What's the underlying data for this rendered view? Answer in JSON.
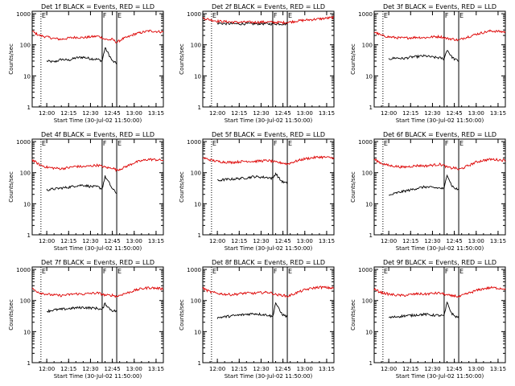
{
  "figure": {
    "x_title": "Start Time (30-Jul-02 11:50:00)",
    "y_title": "Counts/sec",
    "x_ticks": [
      "12:00",
      "12:15",
      "12:30",
      "12:45",
      "13:00",
      "13:15"
    ],
    "y_ticks": [
      "1",
      "10",
      "100",
      "1000"
    ],
    "marker_labels": [
      "E",
      "F",
      "E"
    ],
    "colors": {
      "events": "#000000",
      "lld": "#dd0000",
      "axes": "#000000"
    }
  },
  "chart_data": [
    {
      "type": "line",
      "title": "Det 1f BLACK = Events, RED = LLD",
      "xlabel": "Start Time (30-Jul-02 11:50:00)",
      "ylabel": "Counts/sec",
      "x_unit": "minutes after 11:50",
      "xlim": [
        0,
        90
      ],
      "ylim": [
        1,
        1200
      ],
      "yscale": "log",
      "marker_lines": [
        6,
        48,
        58
      ],
      "series": [
        {
          "name": "Events",
          "color": "#000000",
          "x": [
            10,
            15,
            20,
            25,
            30,
            35,
            40,
            45,
            48,
            50,
            53,
            55,
            58
          ],
          "y": [
            30,
            28,
            34,
            32,
            38,
            40,
            36,
            34,
            30,
            80,
            45,
            30,
            25
          ]
        },
        {
          "name": "LLD",
          "color": "#dd0000",
          "x": [
            0,
            5,
            10,
            15,
            20,
            25,
            30,
            35,
            40,
            45,
            48,
            50,
            53,
            55,
            58,
            62,
            66,
            70,
            75,
            80,
            85,
            90
          ],
          "y": [
            270,
            200,
            180,
            160,
            150,
            165,
            175,
            170,
            180,
            190,
            170,
            150,
            145,
            150,
            120,
            155,
            180,
            220,
            250,
            280,
            270,
            260
          ]
        }
      ]
    },
    {
      "type": "line",
      "title": "Det 2f BLACK = Events, RED = LLD",
      "xlabel": "Start Time (30-Jul-02 11:50:00)",
      "ylabel": "Counts/sec",
      "x_unit": "minutes after 11:50",
      "xlim": [
        0,
        90
      ],
      "ylim": [
        1,
        1200
      ],
      "yscale": "log",
      "marker_lines": [
        6,
        48,
        58
      ],
      "series": [
        {
          "name": "Events",
          "color": "#000000",
          "x": [
            10,
            15,
            20,
            25,
            30,
            35,
            40,
            45,
            50,
            55,
            58
          ],
          "y": [
            500,
            480,
            480,
            470,
            480,
            470,
            480,
            470,
            475,
            470,
            470
          ]
        },
        {
          "name": "LLD",
          "color": "#dd0000",
          "x": [
            0,
            5,
            10,
            15,
            20,
            25,
            30,
            35,
            40,
            45,
            50,
            55,
            60,
            65,
            70,
            75,
            80,
            85,
            90
          ],
          "y": [
            720,
            640,
            580,
            560,
            540,
            530,
            540,
            530,
            540,
            540,
            530,
            520,
            540,
            590,
            620,
            650,
            680,
            720,
            760
          ]
        }
      ]
    },
    {
      "type": "line",
      "title": "Det 3f BLACK = Events, RED = LLD",
      "xlabel": "Start Time (30-Jul-02 11:50:00)",
      "ylabel": "Counts/sec",
      "x_unit": "minutes after 11:50",
      "xlim": [
        0,
        90
      ],
      "ylim": [
        1,
        1200
      ],
      "yscale": "log",
      "marker_lines": [
        6,
        48,
        58
      ],
      "series": [
        {
          "name": "Events",
          "color": "#000000",
          "x": [
            10,
            15,
            20,
            25,
            30,
            35,
            40,
            45,
            48,
            50,
            53,
            55,
            58
          ],
          "y": [
            35,
            38,
            36,
            40,
            42,
            44,
            40,
            38,
            35,
            70,
            42,
            35,
            30
          ]
        },
        {
          "name": "LLD",
          "color": "#dd0000",
          "x": [
            0,
            5,
            10,
            15,
            20,
            25,
            30,
            35,
            40,
            45,
            48,
            50,
            53,
            55,
            58,
            62,
            66,
            70,
            75,
            80,
            85,
            90
          ],
          "y": [
            260,
            200,
            180,
            170,
            165,
            170,
            175,
            170,
            180,
            185,
            170,
            160,
            155,
            150,
            140,
            170,
            190,
            220,
            250,
            280,
            270,
            260
          ]
        }
      ]
    },
    {
      "type": "line",
      "title": "Det 4f BLACK = Events, RED = LLD",
      "xlabel": "Start Time (30-Jul-02 11:50:00)",
      "ylabel": "Counts/sec",
      "x_unit": "minutes after 11:50",
      "xlim": [
        0,
        90
      ],
      "ylim": [
        1,
        1200
      ],
      "yscale": "log",
      "marker_lines": [
        6,
        48,
        58
      ],
      "series": [
        {
          "name": "Events",
          "color": "#000000",
          "x": [
            10,
            15,
            20,
            25,
            30,
            35,
            40,
            45,
            48,
            50,
            53,
            55,
            58
          ],
          "y": [
            28,
            30,
            32,
            34,
            38,
            40,
            36,
            35,
            30,
            75,
            45,
            30,
            22
          ]
        },
        {
          "name": "LLD",
          "color": "#dd0000",
          "x": [
            0,
            5,
            10,
            15,
            20,
            25,
            30,
            35,
            40,
            45,
            48,
            50,
            53,
            55,
            58,
            62,
            66,
            70,
            75,
            80,
            85,
            90
          ],
          "y": [
            260,
            180,
            150,
            140,
            135,
            145,
            160,
            155,
            165,
            175,
            160,
            150,
            140,
            145,
            120,
            140,
            170,
            210,
            240,
            270,
            260,
            250
          ]
        }
      ]
    },
    {
      "type": "line",
      "title": "Det 5f BLACK = Events, RED = LLD",
      "xlabel": "Start Time (30-Jul-02 11:50:00)",
      "ylabel": "Counts/sec",
      "x_unit": "minutes after 11:50",
      "xlim": [
        0,
        90
      ],
      "ylim": [
        1,
        1200
      ],
      "yscale": "log",
      "marker_lines": [
        6,
        48,
        58
      ],
      "series": [
        {
          "name": "Events",
          "color": "#000000",
          "x": [
            10,
            15,
            20,
            25,
            30,
            35,
            40,
            45,
            48,
            50,
            53,
            55,
            58
          ],
          "y": [
            55,
            60,
            62,
            65,
            68,
            75,
            72,
            70,
            65,
            95,
            60,
            50,
            45
          ]
        },
        {
          "name": "LLD",
          "color": "#dd0000",
          "x": [
            0,
            5,
            10,
            15,
            20,
            25,
            30,
            35,
            40,
            45,
            48,
            50,
            53,
            55,
            58,
            62,
            66,
            70,
            75,
            80,
            85,
            90
          ],
          "y": [
            300,
            260,
            230,
            220,
            215,
            225,
            235,
            230,
            240,
            245,
            230,
            215,
            210,
            205,
            190,
            220,
            250,
            280,
            300,
            320,
            310,
            300
          ]
        }
      ]
    },
    {
      "type": "line",
      "title": "Det 6f BLACK = Events, RED = LLD",
      "xlabel": "Start Time (30-Jul-02 11:50:00)",
      "ylabel": "Counts/sec",
      "x_unit": "minutes after 11:50",
      "xlim": [
        0,
        90
      ],
      "ylim": [
        1,
        1200
      ],
      "yscale": "log",
      "marker_lines": [
        6,
        48,
        58
      ],
      "series": [
        {
          "name": "Events",
          "color": "#000000",
          "x": [
            10,
            15,
            20,
            25,
            30,
            35,
            40,
            45,
            48,
            50,
            53,
            55,
            58
          ],
          "y": [
            18,
            22,
            25,
            28,
            32,
            35,
            33,
            32,
            30,
            90,
            40,
            32,
            28
          ]
        },
        {
          "name": "LLD",
          "color": "#dd0000",
          "x": [
            0,
            5,
            10,
            15,
            20,
            25,
            30,
            35,
            40,
            45,
            48,
            50,
            53,
            55,
            58,
            62,
            66,
            70,
            75,
            80,
            85,
            90
          ],
          "y": [
            270,
            200,
            170,
            160,
            150,
            160,
            170,
            165,
            175,
            185,
            170,
            150,
            140,
            145,
            125,
            150,
            180,
            220,
            250,
            270,
            260,
            250
          ]
        }
      ]
    },
    {
      "type": "line",
      "title": "Det 7f BLACK = Events, RED = LLD",
      "xlabel": "Start Time (30-Jul-02 11:50:00)",
      "ylabel": "Counts/sec",
      "x_unit": "minutes after 11:50",
      "xlim": [
        0,
        90
      ],
      "ylim": [
        1,
        1200
      ],
      "yscale": "log",
      "marker_lines": [
        6,
        48,
        58
      ],
      "series": [
        {
          "name": "Events",
          "color": "#000000",
          "x": [
            10,
            15,
            20,
            25,
            30,
            35,
            40,
            45,
            48,
            50,
            53,
            55,
            58
          ],
          "y": [
            45,
            50,
            52,
            55,
            58,
            60,
            58,
            56,
            50,
            80,
            55,
            48,
            45
          ]
        },
        {
          "name": "LLD",
          "color": "#dd0000",
          "x": [
            0,
            5,
            10,
            15,
            20,
            25,
            30,
            35,
            40,
            45,
            48,
            50,
            53,
            55,
            58,
            62,
            66,
            70,
            75,
            80,
            85,
            90
          ],
          "y": [
            240,
            180,
            160,
            150,
            145,
            155,
            165,
            160,
            170,
            175,
            160,
            150,
            145,
            150,
            135,
            160,
            180,
            210,
            240,
            260,
            250,
            240
          ]
        }
      ]
    },
    {
      "type": "line",
      "title": "Det 8f BLACK = Events, RED = LLD",
      "xlabel": "Start Time (30-Jul-02 11:50:00)",
      "ylabel": "Counts/sec",
      "x_unit": "minutes after 11:50",
      "xlim": [
        0,
        90
      ],
      "ylim": [
        1,
        1200
      ],
      "yscale": "log",
      "marker_lines": [
        6,
        48,
        58
      ],
      "series": [
        {
          "name": "Events",
          "color": "#000000",
          "x": [
            10,
            15,
            20,
            25,
            30,
            35,
            40,
            45,
            48,
            50,
            53,
            55,
            58
          ],
          "y": [
            28,
            30,
            32,
            34,
            36,
            38,
            36,
            34,
            30,
            85,
            45,
            35,
            30
          ]
        },
        {
          "name": "LLD",
          "color": "#dd0000",
          "x": [
            0,
            5,
            10,
            15,
            20,
            25,
            30,
            35,
            40,
            45,
            48,
            50,
            53,
            55,
            58,
            62,
            66,
            70,
            75,
            80,
            85,
            90
          ],
          "y": [
            250,
            190,
            170,
            160,
            155,
            165,
            175,
            170,
            180,
            185,
            170,
            155,
            150,
            150,
            135,
            160,
            190,
            220,
            250,
            270,
            260,
            250
          ]
        }
      ]
    },
    {
      "type": "line",
      "title": "Det 9f BLACK = Events, RED = LLD",
      "xlabel": "Start Time (30-Jul-02 11:50:00)",
      "ylabel": "Counts/sec",
      "x_unit": "minutes after 11:50",
      "xlim": [
        0,
        90
      ],
      "ylim": [
        1,
        1200
      ],
      "yscale": "log",
      "marker_lines": [
        6,
        48,
        58
      ],
      "series": [
        {
          "name": "Events",
          "color": "#000000",
          "x": [
            10,
            15,
            20,
            25,
            30,
            35,
            40,
            45,
            48,
            50,
            53,
            55,
            58
          ],
          "y": [
            28,
            30,
            32,
            33,
            35,
            36,
            34,
            33,
            32,
            85,
            40,
            32,
            28
          ]
        },
        {
          "name": "LLD",
          "color": "#dd0000",
          "x": [
            0,
            5,
            10,
            15,
            20,
            25,
            30,
            35,
            40,
            45,
            48,
            50,
            53,
            55,
            58,
            62,
            66,
            70,
            75,
            80,
            85,
            90
          ],
          "y": [
            230,
            180,
            160,
            150,
            145,
            155,
            165,
            160,
            170,
            175,
            160,
            150,
            140,
            145,
            130,
            155,
            180,
            210,
            240,
            260,
            250,
            240
          ]
        }
      ]
    }
  ]
}
